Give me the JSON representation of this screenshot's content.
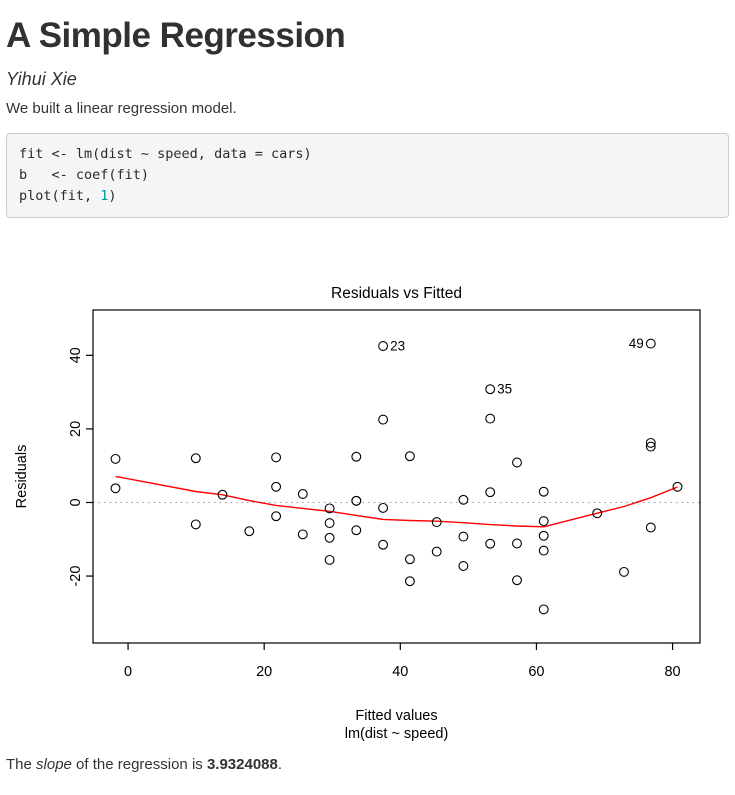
{
  "document": {
    "title": "A Simple Regression",
    "author": "Yihui Xie",
    "intro": "We built a linear regression model.",
    "conclusion": {
      "prefix": "The ",
      "emphasis": "slope",
      "middle": " of the regression is ",
      "value": "3.9324088",
      "suffix": "."
    }
  },
  "code_block": {
    "language": "r",
    "background": "#f5f5f5",
    "border_color": "#cccccc",
    "number_color": "#099",
    "lines": [
      [
        {
          "type": "plain",
          "text": "fit <- lm(dist ~ speed, data = cars)"
        }
      ],
      [
        {
          "type": "plain",
          "text": "b   <- coef(fit)"
        }
      ],
      [
        {
          "type": "plain",
          "text": "plot(fit, "
        },
        {
          "type": "number",
          "text": "1"
        },
        {
          "type": "plain",
          "text": ")"
        }
      ]
    ]
  },
  "chart_data": {
    "type": "scatter",
    "title": "Residuals vs Fitted",
    "xlabel": "Fitted values",
    "xlabel_sub": "lm(dist ~ speed)",
    "ylabel": "Residuals",
    "x_ticks": [
      0,
      20,
      40,
      60,
      80
    ],
    "y_ticks": [
      -20,
      0,
      20,
      40
    ],
    "xlim": [
      -5.15,
      84.03
    ],
    "ylim": [
      -38.2,
      52.33
    ],
    "grid": false,
    "legend": "none",
    "reference_line_y": 0,
    "colors": {
      "points": "#000000",
      "smooth": "#ff0000",
      "reference": "#999999",
      "frame": "#000000"
    },
    "points": [
      [
        -1.85,
        3.85
      ],
      [
        -1.85,
        11.85
      ],
      [
        9.95,
        -5.95
      ],
      [
        9.95,
        12.05
      ],
      [
        13.88,
        2.12
      ],
      [
        17.81,
        -7.81
      ],
      [
        21.75,
        -3.74
      ],
      [
        21.75,
        4.26
      ],
      [
        21.75,
        12.26
      ],
      [
        25.68,
        -8.68
      ],
      [
        25.68,
        2.32
      ],
      [
        29.61,
        -15.61
      ],
      [
        29.61,
        -9.61
      ],
      [
        29.61,
        -5.61
      ],
      [
        29.61,
        -1.61
      ],
      [
        33.54,
        -7.54
      ],
      [
        33.54,
        0.46
      ],
      [
        33.54,
        0.46
      ],
      [
        33.54,
        12.46
      ],
      [
        37.47,
        -11.47
      ],
      [
        37.47,
        -1.47
      ],
      [
        37.47,
        22.53
      ],
      [
        37.47,
        42.53
      ],
      [
        41.41,
        -21.41
      ],
      [
        41.41,
        -15.41
      ],
      [
        41.41,
        12.59
      ],
      [
        45.34,
        -13.34
      ],
      [
        45.34,
        -5.34
      ],
      [
        49.27,
        -17.27
      ],
      [
        49.27,
        -9.27
      ],
      [
        49.27,
        0.73
      ],
      [
        53.2,
        -11.2
      ],
      [
        53.2,
        2.8
      ],
      [
        53.2,
        22.8
      ],
      [
        53.2,
        30.8
      ],
      [
        57.14,
        -21.14
      ],
      [
        57.14,
        -11.14
      ],
      [
        57.14,
        10.86
      ],
      [
        61.07,
        -29.07
      ],
      [
        61.07,
        -13.07
      ],
      [
        61.07,
        -9.07
      ],
      [
        61.07,
        -5.07
      ],
      [
        61.07,
        2.93
      ],
      [
        68.93,
        -2.93
      ],
      [
        72.87,
        -18.87
      ],
      [
        76.8,
        -6.8
      ],
      [
        76.8,
        15.2
      ],
      [
        76.8,
        16.2
      ],
      [
        76.8,
        43.2
      ],
      [
        80.73,
        4.27
      ]
    ],
    "labeled_points": [
      {
        "label": "23",
        "x": 37.47,
        "y": 42.53,
        "side": "right"
      },
      {
        "label": "35",
        "x": 53.2,
        "y": 30.8,
        "side": "right"
      },
      {
        "label": "49",
        "x": 76.8,
        "y": 43.2,
        "side": "left"
      }
    ],
    "smooth_line": [
      [
        -1.85,
        7.1
      ],
      [
        9.95,
        3.0
      ],
      [
        13.88,
        2.1
      ],
      [
        17.81,
        0.5
      ],
      [
        21.75,
        -0.8
      ],
      [
        25.68,
        -1.6
      ],
      [
        29.61,
        -2.4
      ],
      [
        33.54,
        -3.5
      ],
      [
        37.47,
        -4.6
      ],
      [
        41.41,
        -4.9
      ],
      [
        45.34,
        -5.1
      ],
      [
        49.27,
        -5.5
      ],
      [
        53.2,
        -6.0
      ],
      [
        57.14,
        -6.4
      ],
      [
        61.07,
        -6.6
      ],
      [
        68.93,
        -2.9
      ],
      [
        72.87,
        -1.1
      ],
      [
        76.8,
        1.3
      ],
      [
        80.73,
        4.2
      ]
    ]
  }
}
